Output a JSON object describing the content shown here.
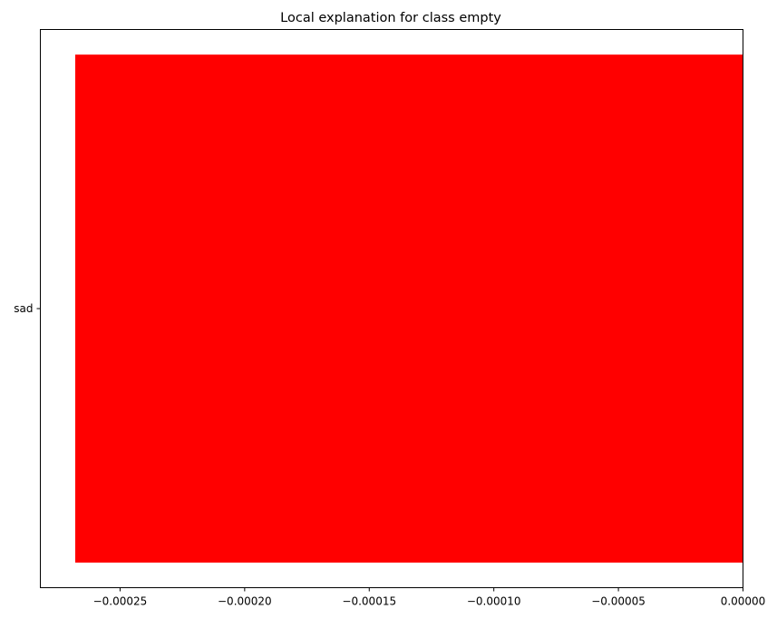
{
  "chart_data": {
    "type": "bar",
    "orientation": "horizontal",
    "title": "Local explanation for class empty",
    "xlabel": "",
    "ylabel": "",
    "categories": [
      "sad"
    ],
    "values": [
      -0.000268
    ],
    "bar_color": "#ff0000",
    "xlim": [
      -0.000282,
      0.0
    ],
    "x_ticks": [
      -0.00025,
      -0.0002,
      -0.00015,
      -0.0001,
      -5e-05,
      0.0
    ],
    "x_tick_labels": [
      "−0.00025",
      "−0.00020",
      "−0.00015",
      "−0.00010",
      "−0.00005",
      "0.00000"
    ],
    "grid": false,
    "legend": "none"
  }
}
